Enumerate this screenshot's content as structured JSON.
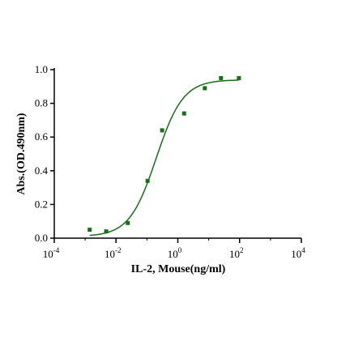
{
  "chart_data": {
    "type": "scatter",
    "xlabel": "IL-2, Mouse(ng/ml)",
    "ylabel": "Abs.(OD.490nm)",
    "xscale": "log",
    "xlim": [
      0.0001,
      10000
    ],
    "ylim": [
      0,
      1.0
    ],
    "xticks": [
      {
        "base": "10",
        "exp": "-4"
      },
      {
        "base": "10",
        "exp": "-2"
      },
      {
        "base": "10",
        "exp": "0"
      },
      {
        "base": "10",
        "exp": "2"
      },
      {
        "base": "10",
        "exp": "4"
      }
    ],
    "yticks": [
      "0.0",
      "0.2",
      "0.4",
      "0.6",
      "0.8",
      "1.0"
    ],
    "grid": false,
    "legend": "none",
    "series": [
      {
        "points": [
          {
            "x": 0.0014,
            "y": 0.05
          },
          {
            "x": 0.0048,
            "y": 0.04
          },
          {
            "x": 0.024,
            "y": 0.09
          },
          {
            "x": 0.105,
            "y": 0.34
          },
          {
            "x": 0.31,
            "y": 0.64
          },
          {
            "x": 1.6,
            "y": 0.74
          },
          {
            "x": 7.5,
            "y": 0.89
          },
          {
            "x": 25,
            "y": 0.95
          },
          {
            "x": 95,
            "y": 0.95
          }
        ],
        "fit": {
          "model": "4PL",
          "bottom": 0.01,
          "top": 0.94,
          "ec50": 0.2,
          "hill": 1.0,
          "xmin": 0.0014,
          "xmax": 95
        }
      }
    ],
    "colors": {
      "marker": "#1a6b1a",
      "curve": "#1a6b1a",
      "axis": "#000000"
    }
  }
}
